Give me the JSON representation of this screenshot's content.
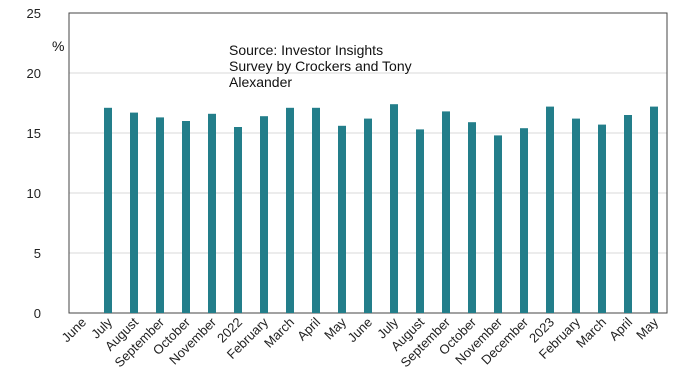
{
  "chart_data": {
    "type": "bar",
    "unit_label": "%",
    "source_note": [
      "Source: Investor Insights",
      "Survey by Crockers and Tony",
      "Alexander"
    ],
    "categories": [
      "June",
      "July",
      "August",
      "September",
      "October",
      "November",
      "2022",
      "February",
      "March",
      "April",
      "May",
      "June",
      "July",
      "August",
      "September",
      "October",
      "November",
      "December",
      "2023",
      "February",
      "March",
      "April",
      "May"
    ],
    "values": [
      null,
      17.1,
      16.7,
      16.3,
      16.0,
      16.6,
      15.5,
      16.4,
      17.1,
      17.1,
      15.6,
      16.2,
      17.4,
      15.3,
      16.8,
      15.9,
      14.8,
      15.4,
      17.2,
      16.2,
      15.7,
      16.5,
      17.2
    ],
    "yticks": [
      0,
      5,
      10,
      15,
      20,
      25
    ],
    "ylim": [
      0,
      25
    ],
    "bar_color": "#237e8a",
    "grid": true
  }
}
